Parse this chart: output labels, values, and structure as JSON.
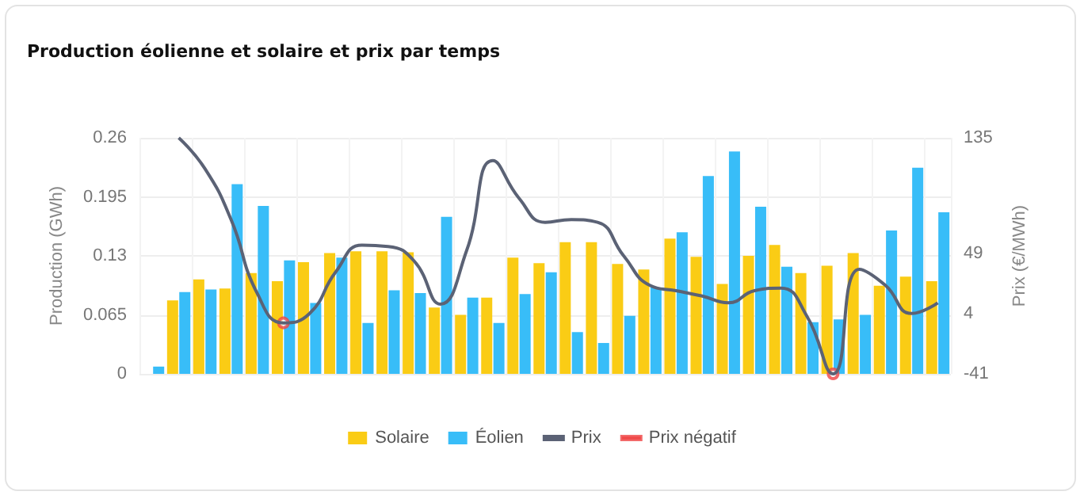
{
  "chart_data": {
    "type": "bar",
    "title": "Production éolienne et solaire et prix par temps",
    "ylabel": "Production (GWh)",
    "y2label": "Prix (€/MWh)",
    "categories": [
      null,
      null,
      null,
      null,
      null,
      null,
      null,
      null,
      null,
      null,
      null,
      null,
      null,
      null,
      null,
      null,
      null,
      null,
      null,
      null,
      null,
      null,
      null,
      null,
      null,
      null,
      null,
      null,
      null,
      null,
      null
    ],
    "series": [
      {
        "name": "Solaire",
        "color": "#facc15",
        "values": [
          0,
          0.081,
          0.104,
          0.094,
          0.111,
          0.102,
          0.123,
          0.133,
          0.135,
          0.135,
          0.134,
          0.073,
          0.065,
          0.084,
          0.128,
          0.122,
          0.145,
          0.145,
          0.121,
          0.115,
          0.149,
          0.129,
          0.099,
          0.13,
          0.142,
          0.111,
          0.119,
          0.133,
          0.097,
          0.107,
          0.102
        ]
      },
      {
        "name": "Éolien",
        "color": "#38bdf8",
        "values": [
          0.008,
          0.09,
          0.093,
          0.209,
          0.185,
          0.125,
          0.078,
          0.128,
          0.056,
          0.092,
          0.089,
          0.173,
          0.084,
          0.056,
          0.088,
          0.112,
          0.046,
          0.034,
          0.064,
          0.095,
          0.156,
          0.218,
          0.245,
          0.184,
          0.118,
          0.057,
          0.06,
          0.065,
          0.158,
          0.227,
          0.178
        ]
      },
      {
        "name": "Prix",
        "type": "line",
        "axis": "y2",
        "color": "#5b6275",
        "marker": "none",
        "values": [
          null,
          135,
          112,
          74,
          19,
          -3,
          4,
          35,
          55,
          54,
          43,
          11,
          51,
          118,
          90,
          72,
          74,
          72,
          47,
          25,
          21,
          17,
          12,
          21,
          23,
          2,
          -41,
          37,
          25,
          4,
          12
        ]
      },
      {
        "name": "Prix négatif",
        "type": "scatter",
        "axis": "y2",
        "color": "#ef4444",
        "marker": "circle",
        "values": [
          null,
          null,
          null,
          null,
          null,
          -3,
          null,
          null,
          null,
          null,
          null,
          null,
          null,
          null,
          null,
          null,
          null,
          null,
          null,
          null,
          null,
          null,
          null,
          null,
          null,
          null,
          -41,
          null,
          null,
          null,
          null
        ]
      }
    ],
    "ylim": [
      0,
      0.26
    ],
    "yticks": [
      0,
      0.065,
      0.13,
      0.195,
      0.26
    ],
    "y2lim": [
      -41,
      135
    ],
    "y2ticks": [
      -41,
      4,
      49,
      135
    ],
    "grid": true,
    "legend": "bottom"
  }
}
